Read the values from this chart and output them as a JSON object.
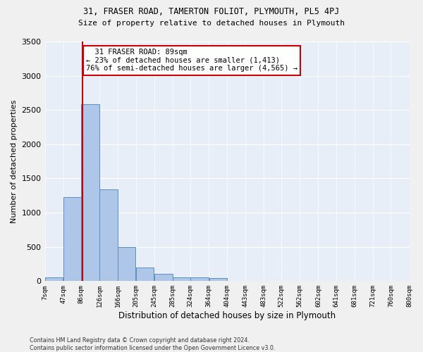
{
  "title_line1": "31, FRASER ROAD, TAMERTON FOLIOT, PLYMOUTH, PL5 4PJ",
  "title_line2": "Size of property relative to detached houses in Plymouth",
  "xlabel": "Distribution of detached houses by size in Plymouth",
  "ylabel": "Number of detached properties",
  "footnote1": "Contains HM Land Registry data © Crown copyright and database right 2024.",
  "footnote2": "Contains public sector information licensed under the Open Government Licence v3.0.",
  "annotation_title": "31 FRASER ROAD: 89sqm",
  "annotation_line2": "← 23% of detached houses are smaller (1,413)",
  "annotation_line3": "76% of semi-detached houses are larger (4,565) →",
  "property_size_sqm": 89,
  "bins": [
    7,
    47,
    86,
    126,
    166,
    205,
    245,
    285,
    324,
    364,
    404,
    443,
    483,
    522,
    562,
    602,
    641,
    681,
    721,
    760,
    800
  ],
  "bar_heights": [
    55,
    1225,
    2580,
    1340,
    500,
    195,
    105,
    55,
    50,
    40,
    5,
    5,
    5,
    0,
    0,
    0,
    0,
    0,
    0,
    0
  ],
  "bar_color": "#aec6e8",
  "bar_edge_color": "#5a8fc0",
  "vline_color": "#cc0000",
  "vline_x": 89,
  "annotation_box_edge": "#cc0000",
  "fig_background_color": "#f0f0f0",
  "ax_background_color": "#e8eef8",
  "grid_color": "#ffffff",
  "ylim": [
    0,
    3500
  ],
  "yticks": [
    0,
    500,
    1000,
    1500,
    2000,
    2500,
    3000,
    3500
  ]
}
